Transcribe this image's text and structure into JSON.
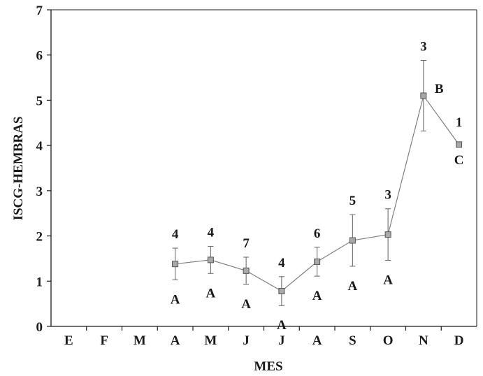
{
  "chart_data": {
    "type": "line",
    "title": "",
    "xlabel": "MES",
    "ylabel": "ISCG-HEMBRAS",
    "ylim": [
      0,
      7
    ],
    "yticks": [
      0,
      1,
      2,
      3,
      4,
      5,
      6,
      7
    ],
    "categories": [
      "E",
      "F",
      "M",
      "A",
      "M",
      "J",
      "J",
      "A",
      "S",
      "O",
      "N",
      "D"
    ],
    "grid": false,
    "legend": "none",
    "colors": {
      "line": "#7f7f7f",
      "marker": "#a8a8a8",
      "marker_edge": "#555555",
      "axis": "#1a1a1a"
    },
    "series": [
      {
        "values": [
          null,
          null,
          null,
          1.38,
          1.47,
          1.23,
          0.78,
          1.43,
          1.9,
          2.03,
          5.1,
          4.02
        ],
        "error": [
          null,
          null,
          null,
          0.35,
          0.3,
          0.3,
          0.32,
          0.32,
          0.57,
          0.57,
          0.78,
          null
        ],
        "n_labels": [
          "",
          "",
          "",
          "4",
          "4",
          "7",
          "4",
          "6",
          "5",
          "3",
          "3",
          "1"
        ],
        "group_labels": [
          "",
          "",
          "",
          "A",
          "A",
          "A",
          "A",
          "A",
          "A",
          "A",
          "B",
          "C"
        ]
      }
    ]
  }
}
